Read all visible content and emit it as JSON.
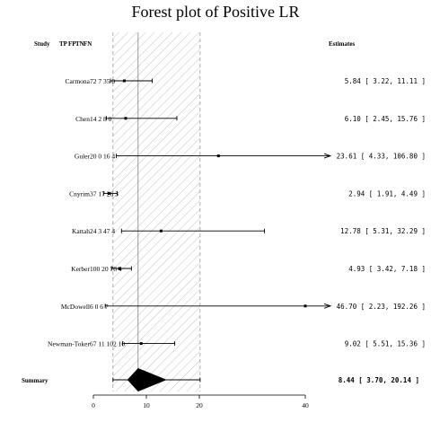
{
  "chart_data": {
    "type": "forest",
    "title": "Forest plot of Positive LR",
    "columns": {
      "study": "Study",
      "tp": "TP",
      "fp": "FP",
      "tn": "TN",
      "fn": "FN",
      "estimates": "Estimates"
    },
    "studies": [
      {
        "study": "Carmona",
        "tp": "72",
        "fp": "7",
        "tn": "35",
        "fn": "0",
        "est": 5.84,
        "lo": 3.22,
        "hi": 11.11,
        "text": "5.84 [ 3.22,  11.11 ]"
      },
      {
        "study": "Chen",
        "tp": "14",
        "fp": "2",
        "tn": "8",
        "fn": "0",
        "est": 6.1,
        "lo": 2.45,
        "hi": 15.76,
        "text": "6.10 [ 2.45,  15.76 ]"
      },
      {
        "study": "Guler",
        "tp": "20",
        "fp": "0",
        "tn": "16",
        "fn": "4",
        "est": 23.61,
        "lo": 4.33,
        "hi": 106.8,
        "text": "23.61 [ 4.33, 106.80 ]"
      },
      {
        "study": "Cnyrim",
        "tp": "37",
        "fp": "17",
        "tn": "26",
        "fn": "3",
        "est": 2.94,
        "lo": 1.91,
        "hi": 4.49,
        "text": "2.94 [ 1.91,   4.49 ]"
      },
      {
        "study": "Kattah",
        "tp": "24",
        "fp": "3",
        "tn": "47",
        "fn": "4",
        "est": 12.78,
        "lo": 5.31,
        "hi": 32.29,
        "text": "12.78 [ 5.31,  32.29 ]"
      },
      {
        "study": "Kerber",
        "tp": "100",
        "fp": "20",
        "tn": "78",
        "fn": "4",
        "est": 4.93,
        "lo": 3.42,
        "hi": 7.18,
        "text": "4.93 [ 3.42,   7.18 ]"
      },
      {
        "study": "McDowell",
        "tp": "6",
        "fp": "0",
        "tn": "6",
        "fn": "7",
        "est": 46.7,
        "lo": 2.23,
        "hi": 192.26,
        "text": "46.70 [ 2.23, 192.26 ]"
      },
      {
        "study": "Newman-Toker",
        "tp": "67",
        "fp": "11",
        "tn": "102",
        "fn": "10",
        "est": 9.02,
        "lo": 5.51,
        "hi": 15.36,
        "text": "9.02 [ 5.51,  15.36 ]"
      }
    ],
    "summary": {
      "label": "Summary",
      "est": 8.44,
      "lo": 3.7,
      "hi": 20.14,
      "text": "8.44 [ 3.70,  20.14 ]"
    },
    "xlim": [
      0,
      40
    ],
    "xticks": [
      "0",
      "10",
      "20",
      "40"
    ],
    "xtick_values": [
      0,
      10,
      20,
      40
    ],
    "xlabel": "",
    "ylabel": "",
    "grid": false,
    "legend": "none",
    "colors": {
      "line": "#000000",
      "hatch": "#9a9a9a",
      "reference": "#808080"
    }
  }
}
